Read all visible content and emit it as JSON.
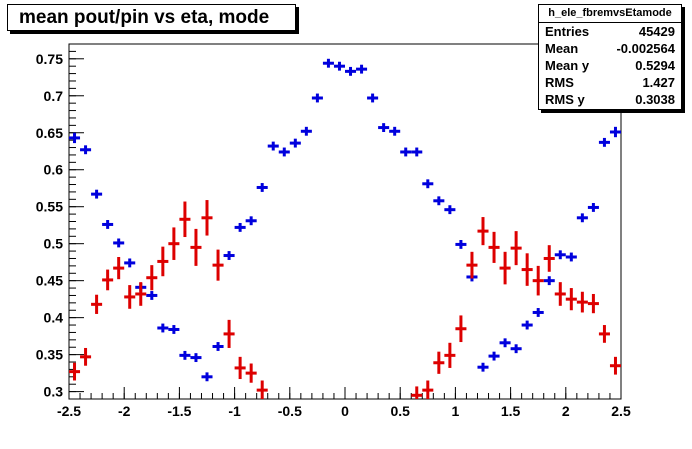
{
  "title": "mean pout/pin vs eta, mode",
  "stats": {
    "name": "h_ele_fbremvsEtamode",
    "rows": [
      {
        "label": "Entries",
        "value": "45429"
      },
      {
        "label": "Mean",
        "value": "-0.002564"
      },
      {
        "label": "Mean y",
        "value": "0.5294"
      },
      {
        "label": "RMS",
        "value": "1.427"
      },
      {
        "label": "RMS y",
        "value": "0.3038"
      }
    ]
  },
  "chart_data": {
    "type": "scatter",
    "title": "mean pout/pin vs eta, mode",
    "xlabel": "",
    "ylabel": "",
    "xlim": [
      -2.5,
      2.5
    ],
    "ylim": [
      0.29,
      0.77
    ],
    "xticks": [
      "-2.5",
      "-2",
      "-1.5",
      "-1",
      "-0.5",
      "0",
      "0.5",
      "1",
      "1.5",
      "2",
      "2.5"
    ],
    "yticks": [
      "0.3",
      "0.35",
      "0.4",
      "0.45",
      "0.5",
      "0.55",
      "0.6",
      "0.65",
      "0.7",
      "0.75"
    ],
    "grid": false,
    "bin_width": 0.1,
    "series": [
      {
        "color": "#0000dd",
        "x": [
          -2.45,
          -2.35,
          -2.25,
          -2.15,
          -2.05,
          -1.95,
          -1.85,
          -1.75,
          -1.65,
          -1.55,
          -1.45,
          -1.35,
          -1.25,
          -1.15,
          -1.05,
          -0.95,
          -0.85,
          -0.75,
          -0.65,
          -0.55,
          -0.45,
          -0.35,
          -0.25,
          -0.15,
          -0.05,
          0.05,
          0.15,
          0.25,
          0.35,
          0.45,
          0.55,
          0.65,
          0.75,
          0.85,
          0.95,
          1.05,
          1.15,
          1.25,
          1.35,
          1.45,
          1.55,
          1.65,
          1.75,
          1.85,
          1.95,
          2.05,
          2.15,
          2.25,
          2.35,
          2.45
        ],
        "y": [
          0.643,
          0.627,
          0.567,
          0.526,
          0.501,
          0.474,
          0.441,
          0.43,
          0.386,
          0.384,
          0.349,
          0.346,
          0.32,
          0.361,
          0.484,
          0.522,
          0.531,
          0.576,
          0.632,
          0.624,
          0.636,
          0.652,
          0.697,
          0.744,
          0.74,
          0.733,
          0.736,
          0.697,
          0.657,
          0.652,
          0.624,
          0.624,
          0.581,
          0.558,
          0.546,
          0.499,
          0.455,
          0.333,
          0.348,
          0.366,
          0.358,
          0.39,
          0.407,
          0.45,
          0.485,
          0.482,
          0.535,
          0.549,
          0.637,
          0.651
        ],
        "yerr": [
          0.007,
          0.006,
          0.006,
          0.006,
          0.006,
          0.006,
          0.006,
          0.006,
          0.006,
          0.006,
          0.006,
          0.006,
          0.006,
          0.006,
          0.006,
          0.006,
          0.006,
          0.006,
          0.006,
          0.006,
          0.006,
          0.006,
          0.006,
          0.006,
          0.006,
          0.006,
          0.006,
          0.006,
          0.006,
          0.006,
          0.006,
          0.006,
          0.006,
          0.006,
          0.006,
          0.006,
          0.006,
          0.006,
          0.006,
          0.006,
          0.006,
          0.006,
          0.006,
          0.006,
          0.006,
          0.006,
          0.006,
          0.006,
          0.006,
          0.007
        ]
      },
      {
        "color": "#dd0000",
        "x": [
          -2.45,
          -2.35,
          -2.25,
          -2.15,
          -2.05,
          -1.95,
          -1.85,
          -1.75,
          -1.65,
          -1.55,
          -1.45,
          -1.35,
          -1.25,
          -1.15,
          -1.05,
          -0.95,
          -0.85,
          -0.75,
          0.65,
          0.75,
          0.85,
          0.95,
          1.05,
          1.15,
          1.25,
          1.35,
          1.45,
          1.55,
          1.65,
          1.75,
          1.85,
          1.95,
          2.05,
          2.15,
          2.25,
          2.35,
          2.45
        ],
        "y": [
          0.327,
          0.347,
          0.418,
          0.451,
          0.467,
          0.428,
          0.432,
          0.454,
          0.476,
          0.5,
          0.533,
          0.495,
          0.535,
          0.471,
          0.378,
          0.332,
          0.325,
          0.302,
          0.295,
          0.302,
          0.339,
          0.349,
          0.385,
          0.471,
          0.517,
          0.495,
          0.467,
          0.494,
          0.465,
          0.45,
          0.48,
          0.432,
          0.425,
          0.421,
          0.419,
          0.378,
          0.335
        ],
        "yerr": [
          0.012,
          0.012,
          0.013,
          0.014,
          0.015,
          0.016,
          0.016,
          0.017,
          0.02,
          0.022,
          0.024,
          0.025,
          0.024,
          0.021,
          0.019,
          0.015,
          0.013,
          0.013,
          0.012,
          0.013,
          0.015,
          0.017,
          0.018,
          0.018,
          0.019,
          0.021,
          0.022,
          0.023,
          0.022,
          0.02,
          0.018,
          0.016,
          0.015,
          0.014,
          0.013,
          0.012,
          0.012
        ]
      }
    ]
  }
}
